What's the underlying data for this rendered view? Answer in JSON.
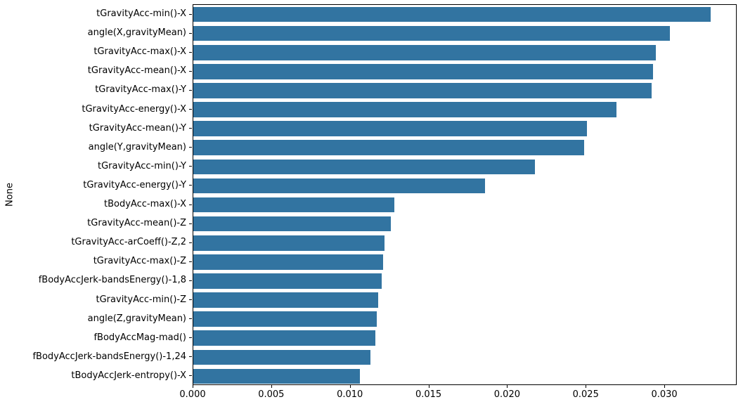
{
  "figure": {
    "background": "#ffffff",
    "bar_color": "#3274a1",
    "spine_color": "#000000",
    "text_color": "#000000"
  },
  "chart_data": {
    "type": "bar",
    "orientation": "horizontal",
    "title": "",
    "xlabel": "",
    "ylabel": "None",
    "grid": false,
    "legend": null,
    "xlim": [
      0,
      0.0346
    ],
    "xticks": [
      0.0,
      0.005,
      0.01,
      0.015,
      0.02,
      0.025,
      0.03
    ],
    "xtick_labels": [
      "0.000",
      "0.005",
      "0.010",
      "0.015",
      "0.020",
      "0.025",
      "0.030"
    ],
    "categories": [
      "tGravityAcc-min()-X",
      "angle(X,gravityMean)",
      "tGravityAcc-max()-X",
      "tGravityAcc-mean()-X",
      "tGravityAcc-max()-Y",
      "tGravityAcc-energy()-X",
      "tGravityAcc-mean()-Y",
      "angle(Y,gravityMean)",
      "tGravityAcc-min()-Y",
      "tGravityAcc-energy()-Y",
      "tBodyAcc-max()-X",
      "tGravityAcc-mean()-Z",
      "tGravityAcc-arCoeff()-Z,2",
      "tGravityAcc-max()-Z",
      "fBodyAccJerk-bandsEnergy()-1,8",
      "tGravityAcc-min()-Z",
      "angle(Z,gravityMean)",
      "fBodyAccMag-mad()",
      "fBodyAccJerk-bandsEnergy()-1,24",
      "tBodyAccJerk-entropy()-X"
    ],
    "values": [
      0.033,
      0.0304,
      0.0295,
      0.0293,
      0.0292,
      0.027,
      0.0251,
      0.0249,
      0.0218,
      0.0186,
      0.0128,
      0.0126,
      0.0122,
      0.0121,
      0.012,
      0.0118,
      0.0117,
      0.0116,
      0.0113,
      0.0106
    ]
  }
}
